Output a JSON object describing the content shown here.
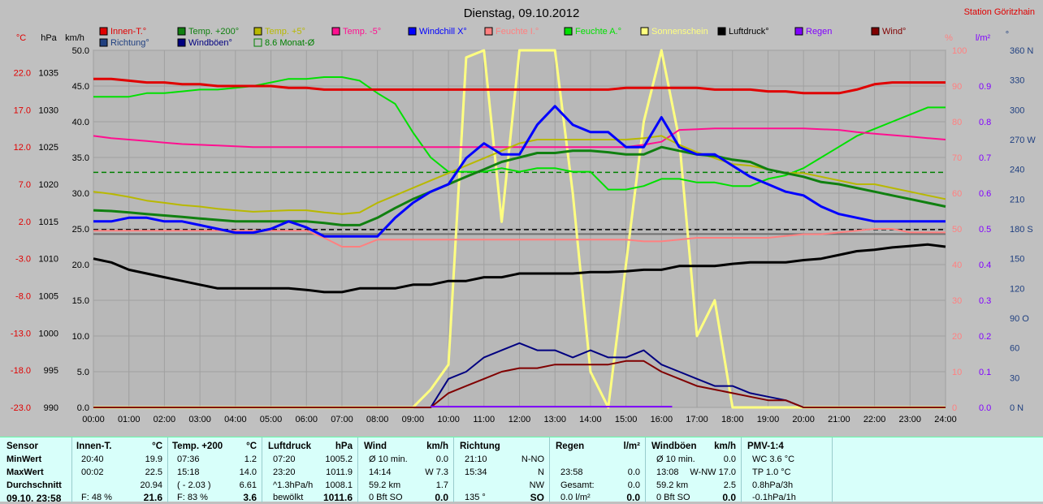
{
  "title": "Dienstag, 09.10.2012",
  "station": "Station Göritzhain",
  "legend": [
    {
      "label": "Innen-T.°",
      "color": "#e00000"
    },
    {
      "label": "Temp. +200°",
      "color": "#108010"
    },
    {
      "label": "Temp. +5°",
      "color": "#b8b800"
    },
    {
      "label": "Temp. -5°",
      "color": "#ff1090"
    },
    {
      "label": "Windchill X°",
      "color": "#0000ff"
    },
    {
      "label": "Feuchte I.°",
      "color": "#ff8080"
    },
    {
      "label": "Feuchte A.°",
      "color": "#00e000"
    },
    {
      "label": "Sonnenschein",
      "color": "#ffff80"
    },
    {
      "label": "Luftdruck°",
      "color": "#000000"
    },
    {
      "label": "Regen",
      "color": "#8000ff"
    },
    {
      "label": "Wind°",
      "color": "#800000"
    },
    {
      "label": "Richtung°",
      "color": "#204080"
    },
    {
      "label": "Windböen°",
      "color": "#000080"
    },
    {
      "label": "8.6 Monat-Ø",
      "color": "#008000"
    }
  ],
  "axis_units": {
    "celsius": "°C",
    "hpa": "hPa",
    "kmh": "km/h",
    "percent": "%",
    "lm2": "l/m²",
    "deg": "°"
  },
  "chart_data": {
    "type": "line",
    "title": "Dienstag, 09.10.2012",
    "x_ticks": [
      "00:00",
      "01:00",
      "02:00",
      "03:00",
      "04:00",
      "05:00",
      "06:00",
      "07:00",
      "08:00",
      "09:00",
      "10:00",
      "11:00",
      "12:00",
      "13:00",
      "14:00",
      "15:00",
      "16:00",
      "17:00",
      "18:00",
      "19:00",
      "20:00",
      "21:00",
      "22:00",
      "23:00",
      "24:00"
    ],
    "x_hours": [
      0,
      0.5,
      1,
      1.5,
      2,
      2.5,
      3,
      3.5,
      4,
      4.5,
      5,
      5.5,
      6,
      6.5,
      7,
      7.5,
      8,
      8.5,
      9,
      9.5,
      10,
      10.5,
      11,
      11.5,
      12,
      12.5,
      13,
      13.5,
      14,
      14.5,
      15,
      15.5,
      16,
      16.5,
      17,
      17.5,
      18,
      18.5,
      19,
      19.5,
      20,
      20.5,
      21,
      21.5,
      22,
      22.5,
      23,
      23.5,
      24
    ],
    "axes": {
      "celsius": {
        "range": [
          -23,
          25
        ],
        "ticks": [
          "22.0",
          "17.0",
          "12.0",
          "7.0",
          "2.0",
          "-3.0",
          "-8.0",
          "-13.0",
          "-18.0",
          "-23.0"
        ],
        "tick_values": [
          22,
          17,
          12,
          7,
          2,
          -3,
          -8,
          -13,
          -18,
          -23
        ]
      },
      "hpa": {
        "range": [
          990,
          1038
        ],
        "ticks": [
          "1035",
          "1030",
          "1025",
          "1020",
          "1015",
          "1010",
          "1005",
          "1000",
          "995",
          "990"
        ],
        "tick_values": [
          1035,
          1030,
          1025,
          1020,
          1015,
          1010,
          1005,
          1000,
          995,
          990
        ]
      },
      "kmh": {
        "range": [
          0,
          50
        ],
        "ticks": [
          "50.0",
          "45.0",
          "40.0",
          "35.0",
          "30.0",
          "25.0",
          "20.0",
          "15.0",
          "10.0",
          "5.0",
          "0.0"
        ],
        "tick_values": [
          50,
          45,
          40,
          35,
          30,
          25,
          20,
          15,
          10,
          5,
          0
        ]
      },
      "percent": {
        "range": [
          0,
          100
        ],
        "ticks": [
          "100",
          "90",
          "80",
          "70",
          "60",
          "50",
          "40",
          "30",
          "20",
          "10",
          "0"
        ],
        "tick_values": [
          100,
          90,
          80,
          70,
          60,
          50,
          40,
          30,
          20,
          10,
          0
        ]
      },
      "lm2": {
        "range": [
          0,
          1.0
        ],
        "ticks": [
          "0.9",
          "0.8",
          "0.7",
          "0.6",
          "0.5",
          "0.4",
          "0.3",
          "0.2",
          "0.1",
          "0.0"
        ],
        "tick_values": [
          0.9,
          0.8,
          0.7,
          0.6,
          0.5,
          0.4,
          0.3,
          0.2,
          0.1,
          0
        ]
      },
      "deg": {
        "range": [
          0,
          360
        ],
        "ticks": [
          "360 N",
          "330",
          "300",
          "270 W",
          "240",
          "210",
          "180 S",
          "150",
          "120",
          "90 O",
          "60",
          "30",
          "0 N"
        ],
        "tick_values": [
          360,
          330,
          300,
          270,
          240,
          210,
          180,
          150,
          120,
          90,
          60,
          30,
          0
        ]
      }
    },
    "series": [
      {
        "name": "Innen-T.°",
        "axis": "percent",
        "color": "#e00000",
        "width": 3,
        "values": [
          92,
          92,
          91.5,
          91,
          91,
          90.5,
          90.5,
          90,
          90,
          90,
          90,
          89.5,
          89.5,
          89,
          89,
          89,
          89,
          89,
          89,
          89,
          89,
          89,
          89,
          89,
          89,
          89,
          89,
          89,
          89,
          89,
          89.5,
          89.5,
          89.5,
          89.5,
          89.5,
          89,
          89,
          89,
          88.5,
          88.5,
          88,
          88,
          88,
          89,
          90.5,
          91,
          91,
          91,
          91
        ]
      },
      {
        "name": "Feuchte A.°",
        "axis": "percent",
        "color": "#00e000",
        "width": 2,
        "values": [
          87,
          87,
          87,
          88,
          88,
          88.5,
          89,
          89,
          89.5,
          90,
          91,
          92,
          92,
          92.5,
          92.5,
          91.5,
          88,
          85,
          77,
          70,
          66,
          66,
          66,
          67,
          66,
          67,
          67,
          66,
          66,
          61,
          61,
          62,
          64,
          64,
          63,
          63,
          62,
          62,
          64,
          65,
          67,
          70,
          73,
          76,
          78,
          80,
          82,
          84,
          84
        ]
      },
      {
        "name": "Feuchte I.°",
        "axis": "percent",
        "color": "#ff8080",
        "width": 2,
        "values": [
          49.5,
          49.5,
          49.5,
          49.5,
          49.5,
          49.5,
          49.5,
          49.5,
          49.5,
          49.5,
          49.5,
          49.5,
          49.5,
          47.5,
          45,
          45,
          47,
          47,
          47,
          47,
          47,
          47,
          47,
          47,
          47,
          47,
          47,
          47,
          47,
          47,
          47,
          46.5,
          46.5,
          47,
          47.5,
          47.5,
          47.5,
          47.5,
          47.5,
          48,
          48.5,
          48.5,
          49,
          49.5,
          50,
          50,
          49,
          49,
          49
        ]
      },
      {
        "name": "Temp. -5°",
        "axis": "celsius",
        "color": "#ff1090",
        "width": 2,
        "values": [
          13.5,
          13.2,
          13,
          12.8,
          12.6,
          12.4,
          12.3,
          12.2,
          12.1,
          12,
          12,
          12,
          12,
          12,
          12,
          12,
          12,
          12,
          12,
          12,
          12,
          12,
          12,
          12,
          12,
          12,
          12,
          12,
          12,
          12,
          12,
          12.3,
          12.7,
          14.3,
          14.4,
          14.5,
          14.5,
          14.5,
          14.5,
          14.5,
          14.5,
          14.4,
          14.3,
          14,
          13.8,
          13.6,
          13.4,
          13.2,
          13
        ]
      },
      {
        "name": "Temp. +5°",
        "axis": "celsius",
        "color": "#b8b800",
        "width": 2,
        "values": [
          6,
          5.7,
          5.3,
          4.8,
          4.5,
          4.2,
          4,
          3.7,
          3.5,
          3.3,
          3.4,
          3.5,
          3.5,
          3.2,
          3,
          3.2,
          4.5,
          5.5,
          6.5,
          7.5,
          8.5,
          9.5,
          10.5,
          11.5,
          12.5,
          13,
          13,
          13,
          13,
          13,
          13,
          13.2,
          13.5,
          12.3,
          11.3,
          10.5,
          9.7,
          9.5,
          9,
          8.5,
          8.5,
          8,
          7.5,
          7,
          7,
          6.5,
          6,
          5.5,
          5
        ]
      },
      {
        "name": "Temp. +200°",
        "axis": "celsius",
        "color": "#108010",
        "width": 3,
        "values": [
          3.5,
          3.4,
          3.2,
          3,
          2.8,
          2.6,
          2.4,
          2.2,
          2,
          2,
          2,
          2,
          2,
          1.8,
          1.5,
          1.5,
          2.5,
          3.8,
          5,
          6,
          7,
          8,
          9,
          10,
          10.6,
          11.2,
          11.2,
          11.5,
          11.5,
          11.3,
          11,
          11,
          12,
          11.5,
          11,
          10.8,
          10.3,
          10,
          9,
          8.5,
          8,
          7.3,
          7,
          6.5,
          6,
          5.5,
          5,
          4.5,
          4
        ]
      },
      {
        "name": "Windchill X°",
        "axis": "celsius",
        "color": "#0000ff",
        "width": 3,
        "values": [
          2,
          2,
          2.5,
          2.5,
          2,
          2,
          1.5,
          1,
          0.5,
          0.5,
          1,
          2,
          1.2,
          0,
          0,
          0,
          0,
          2.5,
          4.5,
          6,
          7,
          10.5,
          12.5,
          11,
          11,
          15,
          17.5,
          15,
          14,
          14,
          12,
          12,
          16,
          12,
          11,
          11,
          9.5,
          8,
          7,
          6,
          5.5,
          4,
          3,
          2.5,
          2,
          2,
          2,
          2,
          2
        ]
      },
      {
        "name": "Luftdruck°",
        "axis": "hpa",
        "color": "#000000",
        "width": 3,
        "values": [
          1010,
          1009.5,
          1008.5,
          1008,
          1007.5,
          1007,
          1006.5,
          1006,
          1006,
          1006,
          1006,
          1006,
          1005.8,
          1005.5,
          1005.5,
          1006,
          1006,
          1006,
          1006.5,
          1006.5,
          1007,
          1007,
          1007.5,
          1007.5,
          1008,
          1008,
          1008,
          1008,
          1008.2,
          1008.2,
          1008.3,
          1008.5,
          1008.5,
          1009,
          1009,
          1009,
          1009.3,
          1009.5,
          1009.5,
          1009.5,
          1009.8,
          1010,
          1010.5,
          1011,
          1011.2,
          1011.5,
          1011.7,
          1011.9,
          1011.6
        ]
      },
      {
        "name": "Windböen°",
        "axis": "kmh",
        "color": "#000080",
        "width": 2,
        "values": [
          0,
          0,
          0,
          0,
          0,
          0,
          0,
          0,
          0,
          0,
          0,
          0,
          0,
          0,
          0,
          0,
          0,
          0,
          0,
          0,
          4,
          5,
          7,
          8,
          9,
          8,
          8,
          7,
          8,
          7,
          7,
          8,
          6,
          5,
          4,
          3,
          3,
          2,
          1.5,
          1,
          0,
          0,
          0,
          0,
          0,
          0,
          0,
          0,
          0
        ]
      },
      {
        "name": "Wind°",
        "axis": "kmh",
        "color": "#800000",
        "width": 2,
        "values": [
          0,
          0,
          0,
          0,
          0,
          0,
          0,
          0,
          0,
          0,
          0,
          0,
          0,
          0,
          0,
          0,
          0,
          0,
          0,
          0,
          2,
          3,
          4,
          5,
          5.5,
          5.5,
          6,
          6,
          6,
          6,
          6.5,
          6.5,
          5,
          4,
          3,
          2.5,
          2,
          1.5,
          1,
          1,
          0,
          0,
          0,
          0,
          0,
          0,
          0,
          0,
          0
        ]
      },
      {
        "name": "Sonnenschein",
        "axis": "percent",
        "color": "#ffff80",
        "width": 3,
        "values": [
          0,
          0,
          0,
          0,
          0,
          0,
          0,
          0,
          0,
          0,
          0,
          0,
          0,
          0,
          0,
          0,
          0,
          0,
          0,
          5,
          12,
          98,
          100,
          52,
          100,
          100,
          100,
          60,
          10,
          0,
          40,
          80,
          100,
          75,
          20,
          30,
          0,
          0,
          0,
          0,
          0,
          0,
          0,
          0,
          0,
          0,
          0,
          0,
          0
        ]
      }
    ],
    "reference_lines": [
      {
        "name": "8.6 Monat-Ø",
        "axis": "celsius",
        "value": 8.6,
        "color": "#008000",
        "dash": true
      },
      {
        "name": "Temp-ref",
        "axis": "celsius",
        "value": 0.9,
        "color": "#000000",
        "dash": true
      },
      {
        "name": "Luftdruck-ref",
        "axis": "hpa",
        "value": 1013.3,
        "color": "#000000",
        "dash": false
      }
    ]
  },
  "table": {
    "sensor": {
      "header": "Sensor",
      "rows": [
        "MinWert",
        "MaxWert",
        "Durchschnitt",
        "09.10. 23:58"
      ]
    },
    "innen": {
      "header": "Innen-T.",
      "unit": "°C",
      "rows": [
        [
          "20:40",
          "19.9"
        ],
        [
          "00:02",
          "22.5"
        ],
        [
          "",
          "20.94"
        ],
        [
          "F: 48 %",
          "21.6"
        ]
      ]
    },
    "temp200": {
      "header": "Temp. +200",
      "unit": "°C",
      "rows": [
        [
          "07:36",
          "1.2"
        ],
        [
          "15:18",
          "14.0"
        ],
        [
          "( - 2.03 )",
          "6.61"
        ],
        [
          "F: 83 %",
          "3.6"
        ]
      ]
    },
    "luftdruck": {
      "header": "Luftdruck",
      "unit": "hPa",
      "rows": [
        [
          "07:20",
          "1005.2"
        ],
        [
          "23:20",
          "1011.9"
        ],
        [
          "^1.3hPa/h",
          "1008.1"
        ],
        [
          "bewölkt",
          "1011.6"
        ]
      ]
    },
    "wind": {
      "header": "Wind",
      "unit": "km/h",
      "rows": [
        [
          "Ø 10 min.",
          "0.0"
        ],
        [
          "14:14",
          "W 7.3"
        ],
        [
          "59.2 km",
          "1.7"
        ],
        [
          "0 Bft SO",
          "0.0"
        ]
      ]
    },
    "richtung": {
      "header": "Richtung",
      "rows": [
        [
          "21:10",
          "N-NO"
        ],
        [
          "15:34",
          "N"
        ],
        [
          "",
          "NW"
        ],
        [
          "135 °",
          "SO"
        ]
      ]
    },
    "regen": {
      "header": "Regen",
      "unit": "l/m²",
      "rows": [
        [
          "",
          ""
        ],
        [
          "23:58",
          "0.0"
        ],
        [
          "Gesamt:",
          "0.0"
        ],
        [
          "0.0 l/m²",
          "0.0"
        ]
      ]
    },
    "windboen": {
      "header": "Windböen",
      "unit": "km/h",
      "rows": [
        [
          "Ø 10 min.",
          "0.0"
        ],
        [
          "13:08",
          "W-NW 17.0"
        ],
        [
          "59.2 km",
          "2.5"
        ],
        [
          "0 Bft SO",
          "0.0"
        ]
      ]
    },
    "pmv": {
      "header": "PMV-1:4",
      "rows": [
        "WC 3.6 °C",
        "TP 1.0 °C",
        "0.8hPa/3h",
        "-0.1hPa/1h"
      ]
    }
  }
}
